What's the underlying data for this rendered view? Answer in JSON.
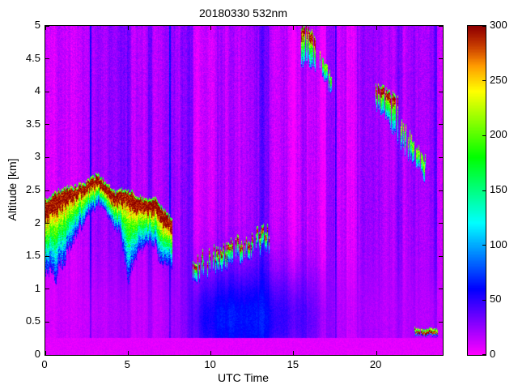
{
  "chart_data": {
    "type": "heatmap",
    "title": "20180330 532nm",
    "xlabel": "UTC Time",
    "ylabel": "Altitude [km]",
    "x_range": [
      0,
      24
    ],
    "y_range": [
      0,
      5
    ],
    "x_ticks": [
      0,
      5,
      10,
      15,
      20
    ],
    "y_ticks": [
      0,
      0.5,
      1,
      1.5,
      2,
      2.5,
      3,
      3.5,
      4,
      4.5,
      5
    ],
    "colorbar": {
      "range": [
        0,
        300
      ],
      "ticks": [
        0,
        50,
        100,
        150,
        200,
        250,
        300
      ]
    },
    "colormap": {
      "description": "reversed HSV: magenta (0) -> violet/blue (50-100) -> cyan (150) -> green (200) -> yellow (240) -> red (280) -> dark red (300)",
      "hue_start_deg": 300,
      "hue_end_deg": 0,
      "darken_above_fraction": 0.88
    },
    "background": {
      "base_value": 16,
      "noise": 16,
      "surface_band_top_km": 0.27,
      "surface_band_value": 6
    },
    "haze": {
      "center_km": 0.55,
      "width_km": 0.78,
      "value_by_time": [
        [
          0,
          13
        ],
        [
          4,
          13
        ],
        [
          7,
          14
        ],
        [
          8.5,
          24
        ],
        [
          9.5,
          55
        ],
        [
          11,
          65
        ],
        [
          12.5,
          62
        ],
        [
          14,
          50
        ],
        [
          15.2,
          44
        ],
        [
          16,
          38
        ],
        [
          17,
          24
        ],
        [
          18,
          18
        ],
        [
          20,
          16
        ],
        [
          22,
          16
        ],
        [
          24,
          14
        ]
      ]
    },
    "stripe_bands": [
      {
        "t": [
          2.68,
          2.78
        ],
        "dv": 38
      },
      {
        "t": [
          7.5,
          7.6
        ],
        "dv": 38
      },
      {
        "t": [
          17.5,
          17.62
        ],
        "dv": 34
      },
      {
        "t": [
          4.95,
          5.2
        ],
        "dv": 12
      },
      {
        "t": [
          6.2,
          6.45
        ],
        "dv": 10
      },
      {
        "t": [
          8.15,
          8.95
        ],
        "dv": 14
      },
      {
        "t": [
          10.35,
          10.85
        ],
        "dv": 12
      },
      {
        "t": [
          12.9,
          13.55
        ],
        "dv": 12
      },
      {
        "t": [
          14.35,
          14.6
        ],
        "dv": 10
      },
      {
        "t": [
          16.95,
          17.45
        ],
        "dv": 12
      },
      {
        "t": [
          18.65,
          18.9
        ],
        "dv": 10
      },
      {
        "t": [
          21.25,
          21.55
        ],
        "dv": 12
      },
      {
        "t": [
          23.45,
          23.65
        ],
        "dv": 10
      }
    ],
    "features": [
      {
        "id": "aerosol-layer-morning",
        "type": "layer",
        "t_range": [
          0,
          7.65
        ],
        "top_alt": [
          [
            0,
            2.32
          ],
          [
            0.5,
            2.42
          ],
          [
            1.0,
            2.5
          ],
          [
            1.7,
            2.52
          ],
          [
            2.3,
            2.58
          ],
          [
            3.1,
            2.72
          ],
          [
            3.6,
            2.6
          ],
          [
            4.2,
            2.45
          ],
          [
            4.8,
            2.5
          ],
          [
            5.4,
            2.42
          ],
          [
            6.0,
            2.32
          ],
          [
            6.6,
            2.35
          ],
          [
            7.1,
            2.2
          ],
          [
            7.65,
            2.02
          ]
        ],
        "core_thickness": [
          [
            0,
            0.3
          ],
          [
            0.8,
            0.28
          ],
          [
            1.5,
            0.18
          ],
          [
            2.5,
            0.14
          ],
          [
            3.5,
            0.12
          ],
          [
            4.6,
            0.2
          ],
          [
            5.2,
            0.22
          ],
          [
            6.0,
            0.15
          ],
          [
            6.7,
            0.22
          ],
          [
            7.65,
            0.18
          ]
        ],
        "core_value": 298,
        "presence": 1.0,
        "plume_depth": [
          [
            0,
            0.75
          ],
          [
            0.6,
            0.95
          ],
          [
            1.2,
            0.75
          ],
          [
            1.8,
            0.5
          ],
          [
            2.6,
            0.3
          ],
          [
            3.4,
            0.25
          ],
          [
            4.4,
            0.35
          ],
          [
            5.0,
            0.9
          ],
          [
            5.6,
            0.55
          ],
          [
            6.3,
            0.45
          ],
          [
            6.9,
            0.6
          ],
          [
            7.65,
            0.5
          ]
        ],
        "plume_top_value": 255,
        "plume_bottom_value": 40,
        "jitter": 0.04
      },
      {
        "id": "broken-layer-midday",
        "type": "broken",
        "t_range": [
          8.85,
          13.5
        ],
        "top_alt": [
          [
            8.85,
            1.38
          ],
          [
            10.0,
            1.52
          ],
          [
            11.0,
            1.65
          ],
          [
            12.0,
            1.76
          ],
          [
            13.5,
            1.88
          ]
        ],
        "core_thickness": 0.07,
        "core_value": 290,
        "presence": 0.6,
        "plume_depth": [
          [
            8.85,
            0.2
          ],
          [
            13.5,
            0.15
          ]
        ],
        "plume_top_value": 200,
        "plume_bottom_value": 60,
        "jitter": 0.12
      },
      {
        "id": "high-cloud-1530",
        "type": "broken",
        "t_range": [
          15.35,
          16.3
        ],
        "top_alt": [
          [
            15.35,
            4.98
          ],
          [
            15.7,
            5.02
          ],
          [
            16.0,
            4.9
          ],
          [
            16.3,
            4.75
          ]
        ],
        "core_thickness": 0.14,
        "core_value": 295,
        "presence": 0.85,
        "plume_depth": [
          [
            15.35,
            0.35
          ],
          [
            16.3,
            0.3
          ]
        ],
        "plume_top_value": 230,
        "plume_bottom_value": 80,
        "jitter": 0.06
      },
      {
        "id": "high-cloud-tail",
        "type": "broken",
        "t_range": [
          16.45,
          17.3
        ],
        "top_alt": [
          [
            16.45,
            4.6
          ],
          [
            17.3,
            4.18
          ]
        ],
        "core_thickness": 0.08,
        "core_value": 200,
        "presence": 0.7,
        "plume_depth": [
          [
            16.45,
            0.18
          ],
          [
            17.3,
            0.12
          ]
        ],
        "plume_top_value": 170,
        "plume_bottom_value": 70,
        "jitter": 0.05
      },
      {
        "id": "cloud-2000-utc",
        "type": "broken",
        "t_range": [
          19.9,
          21.3
        ],
        "top_alt": [
          [
            19.9,
            4.08
          ],
          [
            20.6,
            4.0
          ],
          [
            21.3,
            3.88
          ]
        ],
        "core_thickness": 0.13,
        "core_value": 295,
        "presence": 0.85,
        "plume_depth": [
          [
            19.9,
            0.2
          ],
          [
            20.8,
            0.35
          ],
          [
            21.3,
            0.5
          ]
        ],
        "plume_top_value": 220,
        "plume_bottom_value": 80,
        "jitter": 0.05
      },
      {
        "id": "cloud-2130-utc",
        "type": "broken",
        "t_range": [
          21.45,
          22.95
        ],
        "top_alt": [
          [
            21.45,
            3.52
          ],
          [
            22.2,
            3.25
          ],
          [
            22.95,
            2.95
          ]
        ],
        "core_thickness": 0.1,
        "core_value": 210,
        "presence": 0.7,
        "plume_depth": [
          [
            21.45,
            0.2
          ],
          [
            22.95,
            0.12
          ]
        ],
        "plume_top_value": 170,
        "plume_bottom_value": 80,
        "jitter": 0.08
      },
      {
        "id": "surface-layer-line",
        "type": "broken",
        "t_range": [
          22.25,
          23.7
        ],
        "top_alt": [
          [
            22.25,
            0.38
          ],
          [
            22.8,
            0.34
          ],
          [
            23.3,
            0.38
          ],
          [
            23.7,
            0.35
          ]
        ],
        "core_thickness": 0.035,
        "core_value": 290,
        "presence": 0.85,
        "plume_depth": [
          [
            22.25,
            0.03
          ],
          [
            23.7,
            0.03
          ]
        ],
        "plume_top_value": 120,
        "plume_bottom_value": 40,
        "jitter": 0.02
      }
    ]
  }
}
